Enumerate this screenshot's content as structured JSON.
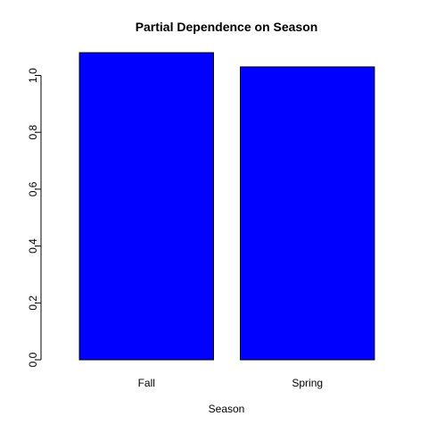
{
  "chart_data": {
    "type": "bar",
    "title": "Partial Dependence on Season",
    "xlabel": "Season",
    "ylabel": "",
    "categories": [
      "Fall",
      "Spring"
    ],
    "values": [
      1.08,
      1.03
    ],
    "ylim": [
      0,
      1.08
    ],
    "yticks": [
      0.0,
      0.2,
      0.4,
      0.6,
      0.8,
      1.0
    ],
    "ytick_labels": [
      "0.0",
      "0.2",
      "0.4",
      "0.6",
      "0.8",
      "1.0"
    ],
    "bar_color": "#0000ff",
    "grid": false,
    "legend": "none"
  }
}
